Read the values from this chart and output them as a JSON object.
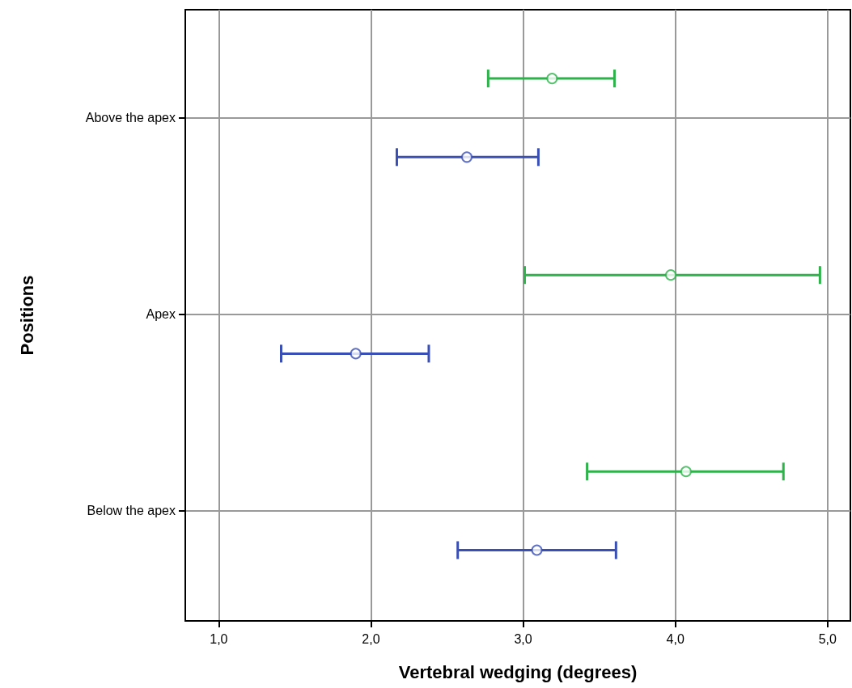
{
  "chart_data": {
    "type": "scatter",
    "orientation": "horizontal",
    "xlabel": "Vertebral wedging (degrees)",
    "ylabel": "Positions",
    "categories": [
      "Above the apex",
      "Apex",
      "Below the apex"
    ],
    "series": [
      {
        "color": "#2db34a",
        "values": [
          3.19,
          3.97,
          4.07
        ],
        "errors": [
          [
            2.77,
            3.6
          ],
          [
            3.01,
            4.95
          ],
          [
            3.42,
            4.71
          ]
        ]
      },
      {
        "color": "#3a4fb5",
        "values": [
          2.63,
          1.9,
          3.09
        ],
        "errors": [
          [
            2.17,
            3.1
          ],
          [
            1.41,
            2.38
          ],
          [
            2.57,
            3.61
          ]
        ]
      }
    ],
    "xlim": [
      0.78,
      5.15
    ],
    "xticks": [
      {
        "value": 1,
        "label": "1,0"
      },
      {
        "value": 2,
        "label": "2,0"
      },
      {
        "value": 3,
        "label": "3,0"
      },
      {
        "value": 4,
        "label": "4,0"
      },
      {
        "value": 5,
        "label": "5,0"
      }
    ],
    "grid": true,
    "marker": "circle"
  }
}
